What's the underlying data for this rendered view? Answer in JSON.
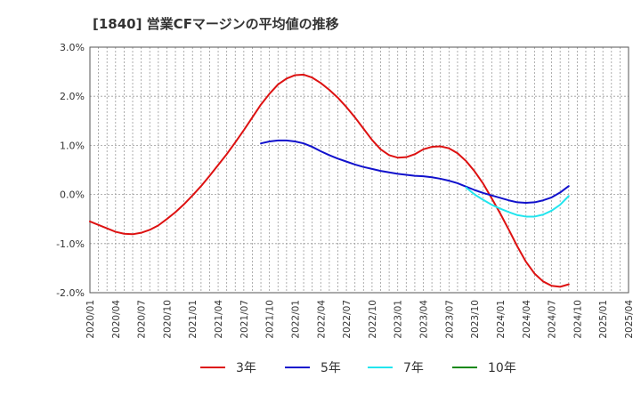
{
  "chart_data": {
    "type": "line",
    "title": "[1840]  営業CFマージンの平均値の推移",
    "xlabel": "",
    "ylabel": "",
    "ylim": [
      -2.0,
      3.0
    ],
    "grid": true,
    "legend_position": "bottom",
    "x_ticks": [
      "2020/01",
      "2020/04",
      "2020/07",
      "2020/10",
      "2021/01",
      "2021/04",
      "2021/07",
      "2021/10",
      "2022/01",
      "2022/04",
      "2022/07",
      "2022/10",
      "2023/01",
      "2023/04",
      "2023/07",
      "2023/10",
      "2024/01",
      "2024/04",
      "2024/07",
      "2024/10",
      "2025/01",
      "2025/04"
    ],
    "y_ticks": [
      {
        "value": 3.0,
        "label": "3.0%"
      },
      {
        "value": 2.0,
        "label": "2.0%"
      },
      {
        "value": 1.0,
        "label": "1.0%"
      },
      {
        "value": 0.0,
        "label": "0.0%"
      },
      {
        "value": -1.0,
        "label": "-1.0%"
      },
      {
        "value": -2.0,
        "label": "-2.0%"
      }
    ],
    "series": [
      {
        "name": "3年",
        "color": "#dd1111",
        "points": [
          [
            "2020/01",
            -0.55
          ],
          [
            "2020/02",
            -0.62
          ],
          [
            "2020/03",
            -0.69
          ],
          [
            "2020/04",
            -0.76
          ],
          [
            "2020/05",
            -0.8
          ],
          [
            "2020/06",
            -0.81
          ],
          [
            "2020/07",
            -0.78
          ],
          [
            "2020/08",
            -0.72
          ],
          [
            "2020/09",
            -0.63
          ],
          [
            "2020/10",
            -0.5
          ],
          [
            "2020/11",
            -0.36
          ],
          [
            "2020/12",
            -0.2
          ],
          [
            "2021/01",
            -0.02
          ],
          [
            "2021/02",
            0.17
          ],
          [
            "2021/03",
            0.38
          ],
          [
            "2021/04",
            0.6
          ],
          [
            "2021/05",
            0.82
          ],
          [
            "2021/06",
            1.06
          ],
          [
            "2021/07",
            1.31
          ],
          [
            "2021/08",
            1.57
          ],
          [
            "2021/09",
            1.83
          ],
          [
            "2021/10",
            2.05
          ],
          [
            "2021/11",
            2.24
          ],
          [
            "2021/12",
            2.36
          ],
          [
            "2022/01",
            2.43
          ],
          [
            "2022/02",
            2.44
          ],
          [
            "2022/03",
            2.38
          ],
          [
            "2022/04",
            2.27
          ],
          [
            "2022/05",
            2.13
          ],
          [
            "2022/06",
            1.97
          ],
          [
            "2022/07",
            1.78
          ],
          [
            "2022/08",
            1.57
          ],
          [
            "2022/09",
            1.34
          ],
          [
            "2022/10",
            1.11
          ],
          [
            "2022/11",
            0.92
          ],
          [
            "2022/12",
            0.8
          ],
          [
            "2023/01",
            0.75
          ],
          [
            "2023/02",
            0.76
          ],
          [
            "2023/03",
            0.82
          ],
          [
            "2023/04",
            0.92
          ],
          [
            "2023/05",
            0.97
          ],
          [
            "2023/06",
            0.98
          ],
          [
            "2023/07",
            0.94
          ],
          [
            "2023/08",
            0.84
          ],
          [
            "2023/09",
            0.68
          ],
          [
            "2023/10",
            0.47
          ],
          [
            "2023/11",
            0.22
          ],
          [
            "2023/12",
            -0.08
          ],
          [
            "2024/01",
            -0.39
          ],
          [
            "2024/02",
            -0.72
          ],
          [
            "2024/03",
            -1.06
          ],
          [
            "2024/04",
            -1.37
          ],
          [
            "2024/05",
            -1.61
          ],
          [
            "2024/06",
            -1.77
          ],
          [
            "2024/07",
            -1.86
          ],
          [
            "2024/08",
            -1.88
          ],
          [
            "2024/09",
            -1.83
          ]
        ]
      },
      {
        "name": "5年",
        "color": "#1111cc",
        "points": [
          [
            "2021/09",
            1.04
          ],
          [
            "2021/10",
            1.08
          ],
          [
            "2021/11",
            1.1
          ],
          [
            "2021/12",
            1.1
          ],
          [
            "2022/01",
            1.08
          ],
          [
            "2022/02",
            1.04
          ],
          [
            "2022/03",
            0.97
          ],
          [
            "2022/04",
            0.88
          ],
          [
            "2022/05",
            0.8
          ],
          [
            "2022/06",
            0.73
          ],
          [
            "2022/07",
            0.67
          ],
          [
            "2022/08",
            0.61
          ],
          [
            "2022/09",
            0.56
          ],
          [
            "2022/10",
            0.52
          ],
          [
            "2022/11",
            0.48
          ],
          [
            "2022/12",
            0.45
          ],
          [
            "2023/01",
            0.42
          ],
          [
            "2023/02",
            0.4
          ],
          [
            "2023/03",
            0.38
          ],
          [
            "2023/04",
            0.37
          ],
          [
            "2023/05",
            0.35
          ],
          [
            "2023/06",
            0.32
          ],
          [
            "2023/07",
            0.28
          ],
          [
            "2023/08",
            0.23
          ],
          [
            "2023/09",
            0.16
          ],
          [
            "2023/10",
            0.09
          ],
          [
            "2023/11",
            0.03
          ],
          [
            "2023/12",
            -0.02
          ],
          [
            "2024/01",
            -0.07
          ],
          [
            "2024/02",
            -0.12
          ],
          [
            "2024/03",
            -0.16
          ],
          [
            "2024/04",
            -0.17
          ],
          [
            "2024/05",
            -0.16
          ],
          [
            "2024/06",
            -0.12
          ],
          [
            "2024/07",
            -0.06
          ],
          [
            "2024/08",
            0.04
          ],
          [
            "2024/09",
            0.17
          ]
        ]
      },
      {
        "name": "7年",
        "color": "#22e5ee",
        "points": [
          [
            "2023/09",
            0.14
          ],
          [
            "2023/10",
            0.0
          ],
          [
            "2023/11",
            -0.11
          ],
          [
            "2023/12",
            -0.21
          ],
          [
            "2024/01",
            -0.29
          ],
          [
            "2024/02",
            -0.36
          ],
          [
            "2024/03",
            -0.42
          ],
          [
            "2024/04",
            -0.45
          ],
          [
            "2024/05",
            -0.45
          ],
          [
            "2024/06",
            -0.41
          ],
          [
            "2024/07",
            -0.33
          ],
          [
            "2024/08",
            -0.21
          ],
          [
            "2024/09",
            -0.03
          ]
        ]
      },
      {
        "name": "10年",
        "color": "#118811",
        "points": []
      }
    ]
  }
}
